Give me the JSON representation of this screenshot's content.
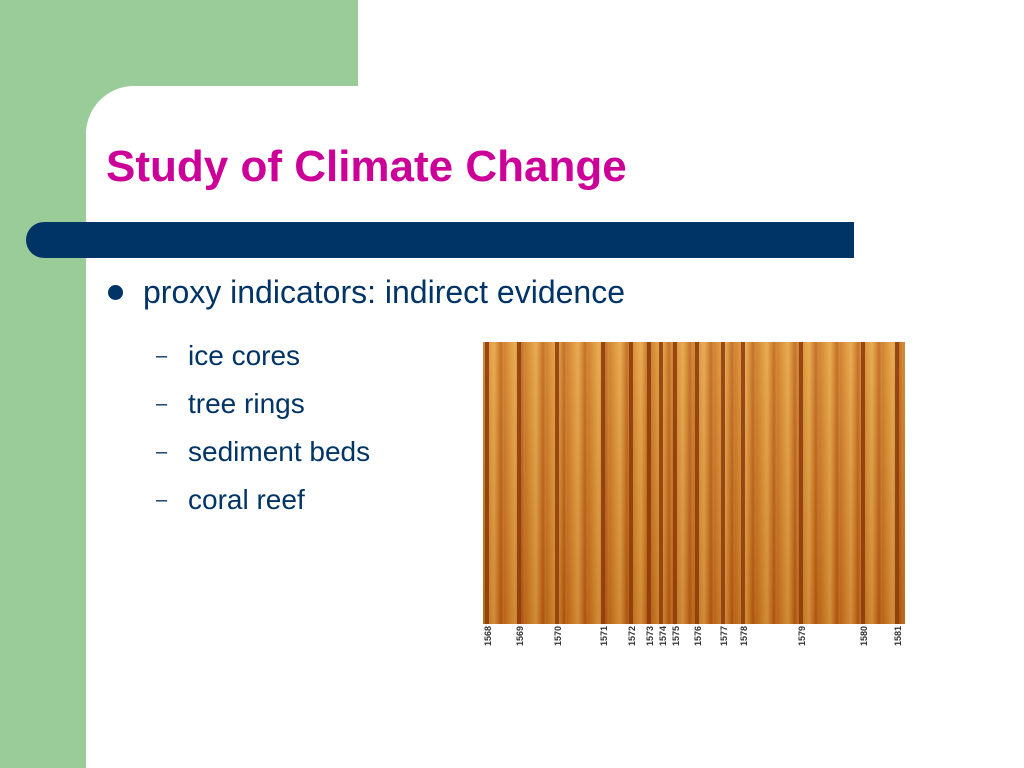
{
  "slide": {
    "title": "Study of Climate Change",
    "bullet": "proxy indicators: indirect evidence",
    "sub_items": [
      "ice cores",
      "tree rings",
      "sediment beds",
      "coral reef"
    ],
    "sub_marker": "–",
    "image": {
      "alt": "tree ring cross-section",
      "year_labels": [
        "1568",
        "1569",
        "1570",
        "1571",
        "1572",
        "1573",
        "1574",
        "1575",
        "1576",
        "1577",
        "1578",
        "1579",
        "1580",
        "1581"
      ]
    },
    "colors": {
      "title": "#cc0099",
      "accent_bar": "#003366",
      "text": "#003366",
      "side_panel": "#99cc99"
    }
  }
}
